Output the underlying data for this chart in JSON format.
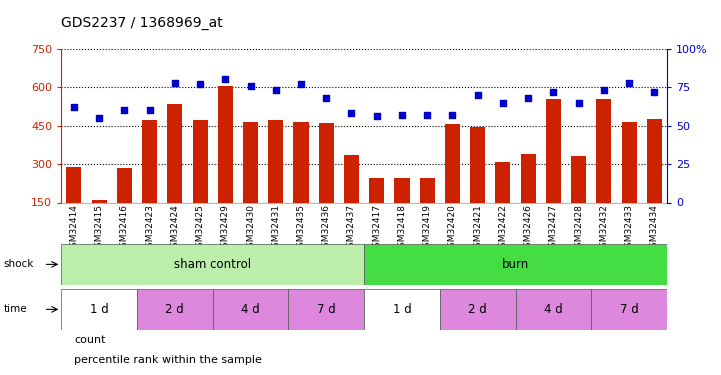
{
  "title": "GDS2237 / 1368969_at",
  "samples": [
    "GSM32414",
    "GSM32415",
    "GSM32416",
    "GSM32423",
    "GSM32424",
    "GSM32425",
    "GSM32429",
    "GSM32430",
    "GSM32431",
    "GSM32435",
    "GSM32436",
    "GSM32437",
    "GSM32417",
    "GSM32418",
    "GSM32419",
    "GSM32420",
    "GSM32421",
    "GSM32422",
    "GSM32426",
    "GSM32427",
    "GSM32428",
    "GSM32432",
    "GSM32433",
    "GSM32434"
  ],
  "counts": [
    290,
    160,
    285,
    470,
    535,
    470,
    605,
    465,
    470,
    465,
    460,
    335,
    245,
    245,
    245,
    455,
    445,
    310,
    340,
    555,
    330,
    555,
    465,
    475
  ],
  "percentiles": [
    62,
    55,
    60,
    60,
    78,
    77,
    80,
    76,
    73,
    77,
    68,
    58,
    56,
    57,
    57,
    57,
    70,
    65,
    68,
    72,
    65,
    73,
    78,
    72
  ],
  "ylim_left": [
    150,
    750
  ],
  "ylim_right": [
    0,
    100
  ],
  "yticks_left": [
    150,
    300,
    450,
    600,
    750
  ],
  "yticks_right": [
    0,
    25,
    50,
    75,
    100
  ],
  "bar_color": "#cc2200",
  "dot_color": "#0000cc",
  "shock_segments": [
    {
      "label": "sham control",
      "start": 0,
      "end": 12,
      "color": "#bbeeaa"
    },
    {
      "label": "burn",
      "start": 12,
      "end": 24,
      "color": "#44dd44"
    }
  ],
  "time_segments": [
    {
      "label": "1 d",
      "start": 0,
      "end": 3,
      "color": "#ffffff"
    },
    {
      "label": "2 d",
      "start": 3,
      "end": 6,
      "color": "#dd88dd"
    },
    {
      "label": "4 d",
      "start": 6,
      "end": 9,
      "color": "#dd88dd"
    },
    {
      "label": "7 d",
      "start": 9,
      "end": 12,
      "color": "#dd88dd"
    },
    {
      "label": "1 d",
      "start": 12,
      "end": 15,
      "color": "#ffffff"
    },
    {
      "label": "2 d",
      "start": 15,
      "end": 18,
      "color": "#dd88dd"
    },
    {
      "label": "4 d",
      "start": 18,
      "end": 21,
      "color": "#dd88dd"
    },
    {
      "label": "7 d",
      "start": 21,
      "end": 24,
      "color": "#dd88dd"
    }
  ],
  "legend": [
    {
      "label": "count",
      "color": "#cc2200"
    },
    {
      "label": "percentile rank within the sample",
      "color": "#0000cc"
    }
  ]
}
